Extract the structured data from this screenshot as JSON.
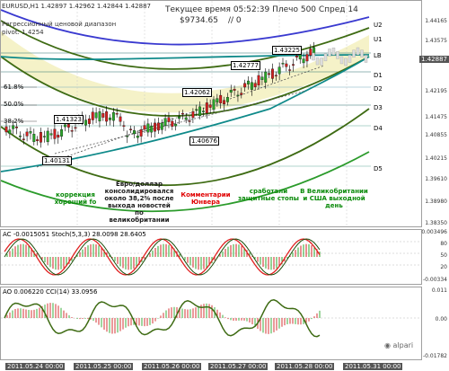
{
  "header": {
    "symbol_line": "EURUSD,H1  1.42897 1.42962 1.42844 1.42887",
    "channel_label": "Регрессионный ценовой диапазон",
    "pivot_label": "pivot: 1.4254",
    "time_label": "Текущее время 05:52:39 Плечо 500 Спред 14",
    "balance_label": "$9734.65",
    "extra_label": "// 0"
  },
  "levels": [
    "U2",
    "U1",
    "LB",
    "D1",
    "D2",
    "D3",
    "D4",
    "D5"
  ],
  "fib": [
    "61.8%",
    "50.0%",
    "38.2%"
  ],
  "price_boxes": [
    "1.41323",
    "1.40131",
    "1.42062",
    "1.40676",
    "1.42777",
    "1.43225"
  ],
  "annotations": [
    {
      "text": "коррекция\nхороший fo",
      "color": "#0a8a0a"
    },
    {
      "text": "Евро/доллар\nконсолидировался\nоколо 38,2% после\nвыхода новостей\nпо великобритании",
      "color": "#1a1a1a"
    },
    {
      "text": "Комментарии\nЮнвера",
      "color": "#e00000"
    },
    {
      "text": "сработали\nзащитные стопы",
      "color": "#0a8a0a"
    },
    {
      "text": "В Великобритании\nи США выходной\nдень",
      "color": "#0a8a0a"
    }
  ],
  "price_axis": [
    "1.44165",
    "1.43575",
    "1.42887",
    "1.42195",
    "1.41475",
    "1.40855",
    "1.40215",
    "1.39610",
    "1.38980",
    "1.38350"
  ],
  "current_price": "1.42887",
  "ac_panel": {
    "label": "AC -0.0015051  Stoch(5,3,3) 28.0098 28.6405",
    "axis": [
      "0.003496",
      "80",
      "50",
      "20",
      "-0.00334"
    ]
  },
  "ao_panel": {
    "label": "AO 0.006220  CCI(14) 33.0956",
    "axis": [
      "0.011",
      "0.00",
      "-0.01782"
    ]
  },
  "time_axis": [
    "2011.05.24 00:00",
    "2011.05.25 00:00",
    "2011.05.26 00:00",
    "2011.05.27 00:00",
    "2011.05.28 00:00",
    "2011.05.31 00:00"
  ],
  "logo": "alpari",
  "colors": {
    "channel_fill": "#f5f2c8",
    "dark_green": "#3e6b13",
    "teal": "#0f8a8a",
    "blue": "#3a3ad0",
    "stoch_red": "#e02020",
    "bull": "#2aa52a",
    "bear": "#d02020"
  },
  "icon_names": {
    "logo": "alpari-logo-icon"
  }
}
